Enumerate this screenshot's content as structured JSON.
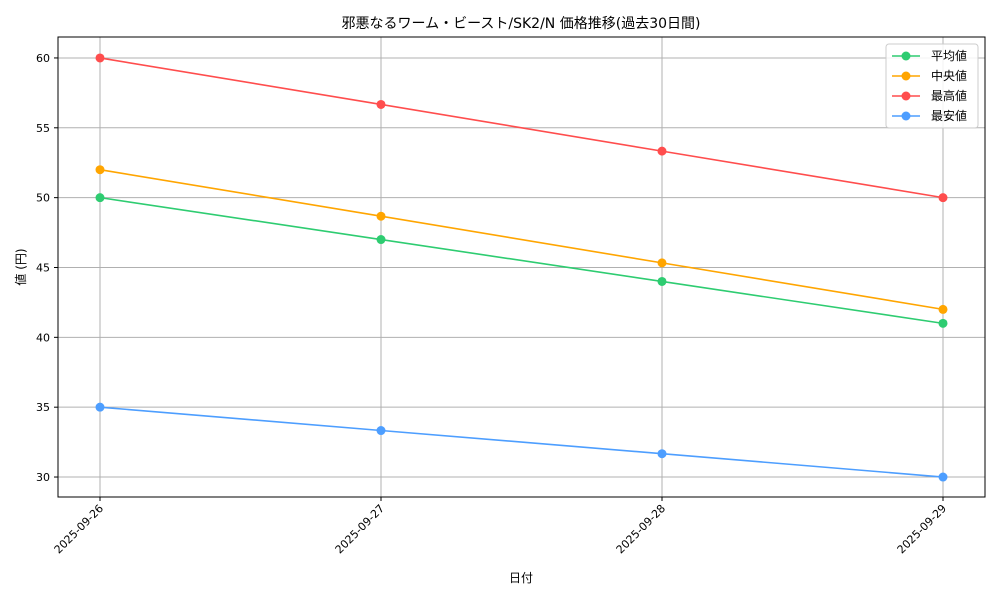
{
  "chart_data": {
    "type": "line",
    "title": "邪悪なるワーム・ビースト/SK2/N 価格推移(過去30日間)",
    "xlabel": "日付",
    "ylabel": "値 (円)",
    "categories": [
      "2025-09-26",
      "2025-09-27",
      "2025-09-28",
      "2025-09-29"
    ],
    "ylim": [
      28.57,
      61.5
    ],
    "yticks": [
      30,
      35,
      40,
      45,
      50,
      55,
      60
    ],
    "grid": true,
    "legend_position": "top-right",
    "series": [
      {
        "name": "平均値",
        "color": "#2ecc71",
        "values": [
          50,
          47,
          44,
          41
        ]
      },
      {
        "name": "中央値",
        "color": "#ffa500",
        "values": [
          52,
          48.67,
          45.33,
          42
        ]
      },
      {
        "name": "最高値",
        "color": "#ff4d4d",
        "values": [
          60,
          56.67,
          53.33,
          50
        ]
      },
      {
        "name": "最安値",
        "color": "#4d9eff",
        "values": [
          35,
          33.33,
          31.67,
          30
        ]
      }
    ]
  }
}
